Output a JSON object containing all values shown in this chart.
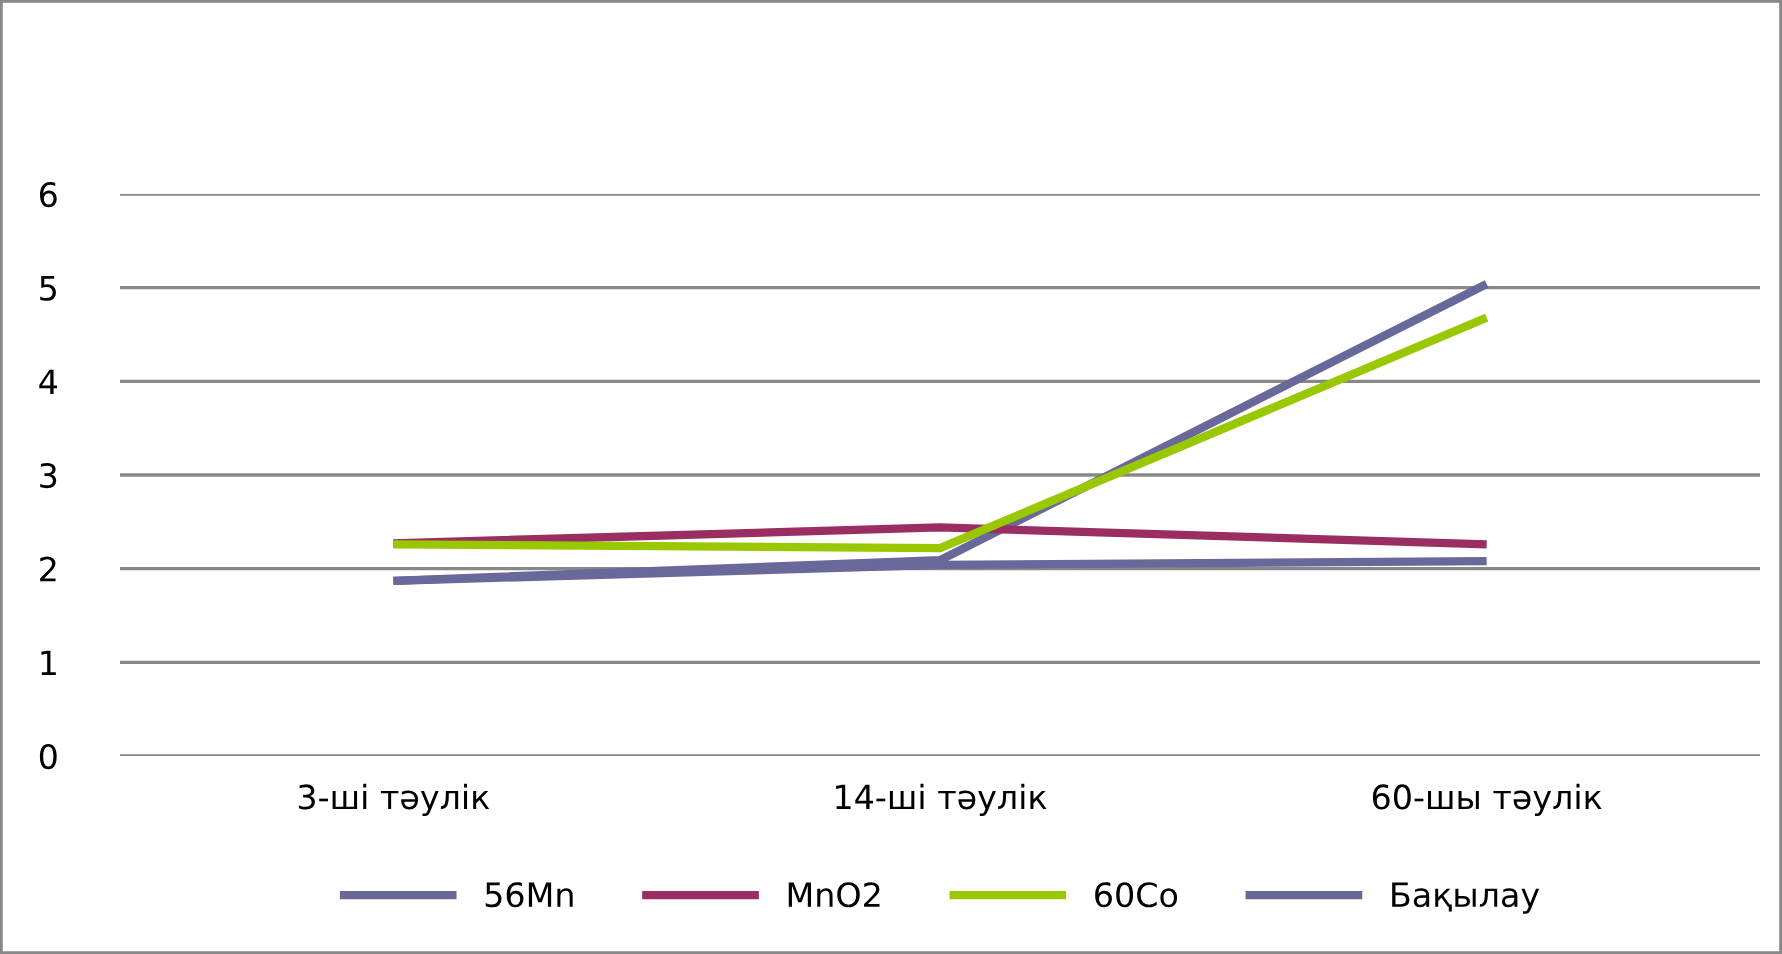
{
  "chart_data": {
    "type": "line",
    "categories": [
      "3-ші тәулік",
      "14-ші тәулік",
      "60-шы тәулік"
    ],
    "series": [
      {
        "name": "56Mn",
        "color": "#68689a",
        "values": [
          1.87,
          2.09,
          5.04
        ]
      },
      {
        "name": "MnO2",
        "color": "#9a2e62",
        "values": [
          2.27,
          2.44,
          2.26
        ]
      },
      {
        "name": "60Co",
        "color": "#99c800",
        "values": [
          2.26,
          2.22,
          4.68
        ]
      },
      {
        "name": "Бақылау",
        "color": "#68689a",
        "values": [
          1.87,
          2.04,
          2.08
        ]
      }
    ],
    "ylim": [
      0,
      6
    ],
    "yticks": [
      0,
      1,
      2,
      3,
      4,
      5,
      6
    ],
    "grid": "y",
    "legend": "bottom",
    "marker": "none",
    "line_style": "solid"
  }
}
